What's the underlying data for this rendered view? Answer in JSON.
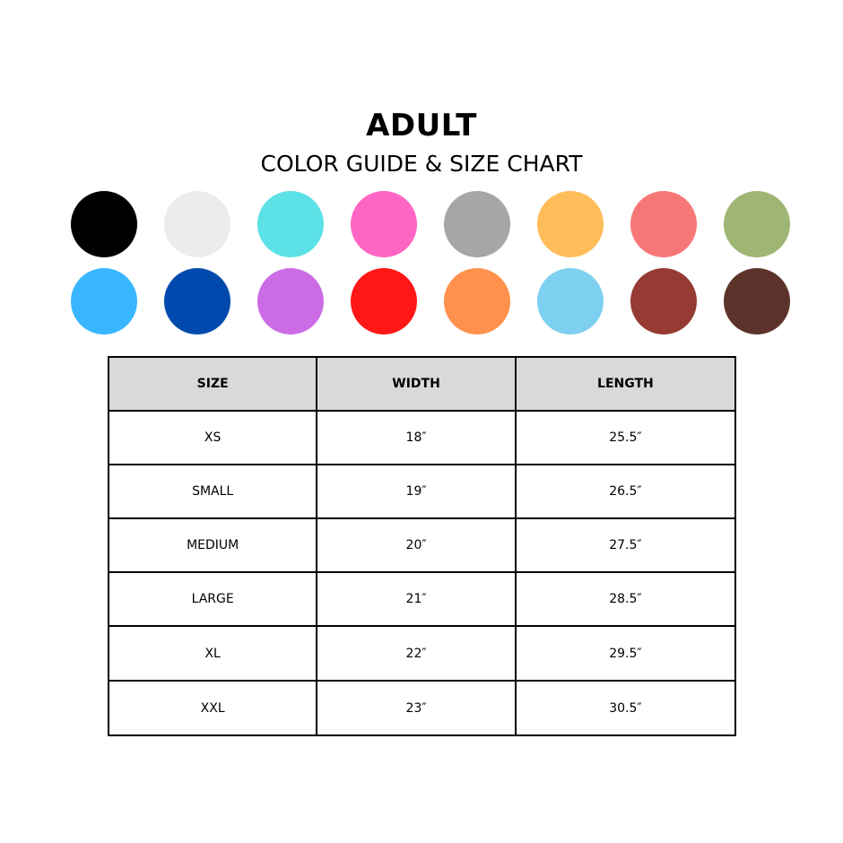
{
  "title": "ADULT",
  "subtitle": "COLOR GUIDE & SIZE CHART",
  "swatches": [
    "#000000",
    "#ececec",
    "#5ce1e6",
    "#ff66c4",
    "#a6a6a6",
    "#ffbd59",
    "#f77777",
    "#9fb573",
    "#38b6ff",
    "#004aad",
    "#cb6ce6",
    "#ff1616",
    "#ff914d",
    "#7ed0f0",
    "#953b33",
    "#5c332a"
  ],
  "table": {
    "headers": [
      "SIZE",
      "WIDTH",
      "LENGTH"
    ],
    "rows": [
      [
        "XS",
        "18″",
        "25.5″"
      ],
      [
        "SMALL",
        "19″",
        "26.5″"
      ],
      [
        "MEDIUM",
        "20″",
        "27.5″"
      ],
      [
        "LARGE",
        "21″",
        "28.5″"
      ],
      [
        "XL",
        "22″",
        "29.5″"
      ],
      [
        "XXL",
        "23″",
        "30.5″"
      ]
    ]
  }
}
